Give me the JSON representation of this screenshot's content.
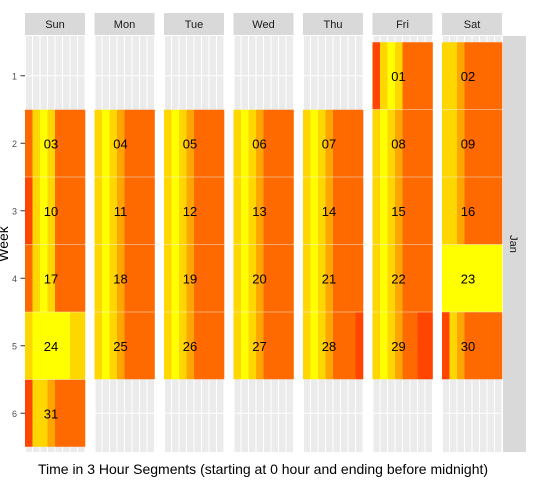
{
  "chart_data": {
    "type": "heatmap",
    "title": "",
    "xlabel": "Time in 3 Hour Segments (starting at 0 hour and ending before midnight)",
    "ylabel": "Week",
    "facet_columns": [
      "Sun",
      "Mon",
      "Tue",
      "Wed",
      "Thu",
      "Fri",
      "Sat"
    ],
    "facet_row_label": "Jan",
    "weeks": [
      "1",
      "2",
      "3",
      "4",
      "5",
      "6"
    ],
    "segments_per_day": 8,
    "color_scale": [
      "#ffff00",
      "#ffd700",
      "#ffa500",
      "#ff6a00",
      "#ff4500"
    ],
    "days": [
      {
        "label": "01",
        "weekday": 5,
        "week": 1,
        "values": [
          4,
          1,
          0,
          1,
          3,
          3,
          3,
          3
        ]
      },
      {
        "label": "02",
        "weekday": 6,
        "week": 1,
        "values": [
          1,
          1,
          2,
          3,
          3,
          3,
          3,
          3
        ]
      },
      {
        "label": "03",
        "weekday": 0,
        "week": 2,
        "values": [
          3,
          1,
          0,
          1,
          3,
          3,
          3,
          3
        ]
      },
      {
        "label": "04",
        "weekday": 1,
        "week": 2,
        "values": [
          1,
          0,
          1,
          2,
          3,
          3,
          3,
          3
        ]
      },
      {
        "label": "05",
        "weekday": 2,
        "week": 2,
        "values": [
          1,
          0,
          1,
          2,
          3,
          3,
          3,
          3
        ]
      },
      {
        "label": "06",
        "weekday": 3,
        "week": 2,
        "values": [
          1,
          0,
          1,
          2,
          3,
          3,
          3,
          3
        ]
      },
      {
        "label": "07",
        "weekday": 4,
        "week": 2,
        "values": [
          1,
          0,
          1,
          2,
          3,
          3,
          3,
          3
        ]
      },
      {
        "label": "08",
        "weekday": 5,
        "week": 2,
        "values": [
          1,
          0,
          1,
          2,
          3,
          3,
          3,
          3
        ]
      },
      {
        "label": "09",
        "weekday": 6,
        "week": 2,
        "values": [
          1,
          1,
          2,
          3,
          3,
          3,
          3,
          3
        ]
      },
      {
        "label": "10",
        "weekday": 0,
        "week": 3,
        "values": [
          4,
          1,
          0,
          1,
          3,
          3,
          3,
          3
        ]
      },
      {
        "label": "11",
        "weekday": 1,
        "week": 3,
        "values": [
          1,
          0,
          1,
          2,
          3,
          3,
          3,
          3
        ]
      },
      {
        "label": "12",
        "weekday": 2,
        "week": 3,
        "values": [
          1,
          0,
          1,
          2,
          3,
          3,
          3,
          3
        ]
      },
      {
        "label": "13",
        "weekday": 3,
        "week": 3,
        "values": [
          1,
          0,
          1,
          2,
          3,
          3,
          3,
          3
        ]
      },
      {
        "label": "14",
        "weekday": 4,
        "week": 3,
        "values": [
          1,
          0,
          1,
          2,
          3,
          3,
          3,
          3
        ]
      },
      {
        "label": "15",
        "weekday": 5,
        "week": 3,
        "values": [
          1,
          0,
          1,
          2,
          3,
          3,
          3,
          3
        ]
      },
      {
        "label": "16",
        "weekday": 6,
        "week": 3,
        "values": [
          1,
          1,
          2,
          3,
          3,
          3,
          3,
          3
        ]
      },
      {
        "label": "17",
        "weekday": 0,
        "week": 4,
        "values": [
          3,
          1,
          0,
          1,
          3,
          3,
          3,
          3
        ]
      },
      {
        "label": "18",
        "weekday": 1,
        "week": 4,
        "values": [
          1,
          0,
          1,
          2,
          3,
          3,
          3,
          3
        ]
      },
      {
        "label": "19",
        "weekday": 2,
        "week": 4,
        "values": [
          1,
          0,
          1,
          2,
          3,
          3,
          3,
          3
        ]
      },
      {
        "label": "20",
        "weekday": 3,
        "week": 4,
        "values": [
          1,
          0,
          1,
          2,
          3,
          3,
          3,
          3
        ]
      },
      {
        "label": "21",
        "weekday": 4,
        "week": 4,
        "values": [
          1,
          0,
          1,
          2,
          3,
          3,
          3,
          3
        ]
      },
      {
        "label": "22",
        "weekday": 5,
        "week": 4,
        "values": [
          1,
          0,
          1,
          2,
          3,
          3,
          3,
          3
        ]
      },
      {
        "label": "23",
        "weekday": 6,
        "week": 4,
        "values": [
          0,
          0,
          0,
          0,
          0,
          0,
          0,
          0
        ]
      },
      {
        "label": "24",
        "weekday": 0,
        "week": 5,
        "values": [
          1,
          0,
          0,
          0,
          0,
          0,
          1,
          1
        ]
      },
      {
        "label": "25",
        "weekday": 1,
        "week": 5,
        "values": [
          1,
          0,
          1,
          2,
          3,
          3,
          3,
          3
        ]
      },
      {
        "label": "26",
        "weekday": 2,
        "week": 5,
        "values": [
          1,
          0,
          1,
          2,
          3,
          3,
          3,
          3
        ]
      },
      {
        "label": "27",
        "weekday": 3,
        "week": 5,
        "values": [
          1,
          0,
          1,
          2,
          3,
          3,
          3,
          3
        ]
      },
      {
        "label": "28",
        "weekday": 4,
        "week": 5,
        "values": [
          1,
          0,
          1,
          2,
          3,
          3,
          3,
          4
        ]
      },
      {
        "label": "29",
        "weekday": 5,
        "week": 5,
        "values": [
          1,
          0,
          1,
          2,
          3,
          3,
          4,
          4
        ]
      },
      {
        "label": "30",
        "weekday": 6,
        "week": 5,
        "values": [
          4,
          1,
          2,
          3,
          3,
          3,
          3,
          3
        ]
      },
      {
        "label": "31",
        "weekday": 0,
        "week": 6,
        "values": [
          4,
          1,
          1,
          2,
          3,
          3,
          3,
          3
        ]
      }
    ]
  }
}
